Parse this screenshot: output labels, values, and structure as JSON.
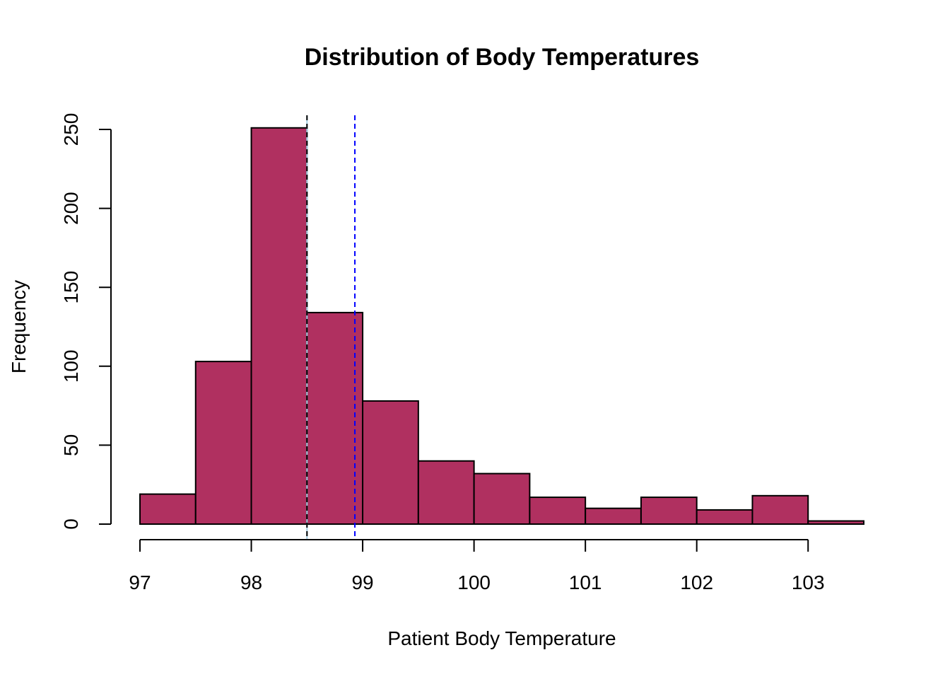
{
  "chart_data": {
    "type": "bar",
    "title": "Distribution of Body Temperatures",
    "xlabel": "Patient Body Temperature",
    "ylabel": "Frequency",
    "bin_edges": [
      97,
      97.5,
      98,
      98.5,
      99,
      99.5,
      100,
      100.5,
      101,
      101.5,
      102,
      102.5,
      103,
      103.5
    ],
    "values": [
      19,
      103,
      251,
      134,
      78,
      40,
      32,
      17,
      10,
      17,
      9,
      18,
      2
    ],
    "xlim": [
      97,
      103.5
    ],
    "ylim": [
      0,
      250
    ],
    "x_ticks": [
      "97",
      "98",
      "99",
      "100",
      "101",
      "102",
      "103"
    ],
    "y_ticks": [
      "0",
      "50",
      "100",
      "150",
      "200",
      "250"
    ],
    "grid": false,
    "legend": "none",
    "reference_lines": [
      {
        "x": 98.5,
        "color": "#a6cee3",
        "style": "solid"
      },
      {
        "x": 98.5,
        "color": "#000000",
        "style": "dashed"
      },
      {
        "x": 98.93,
        "color": "#0000ff",
        "style": "dashed"
      }
    ],
    "colors": {
      "bar_fill": "#b03060",
      "bar_stroke": "#000000"
    }
  }
}
